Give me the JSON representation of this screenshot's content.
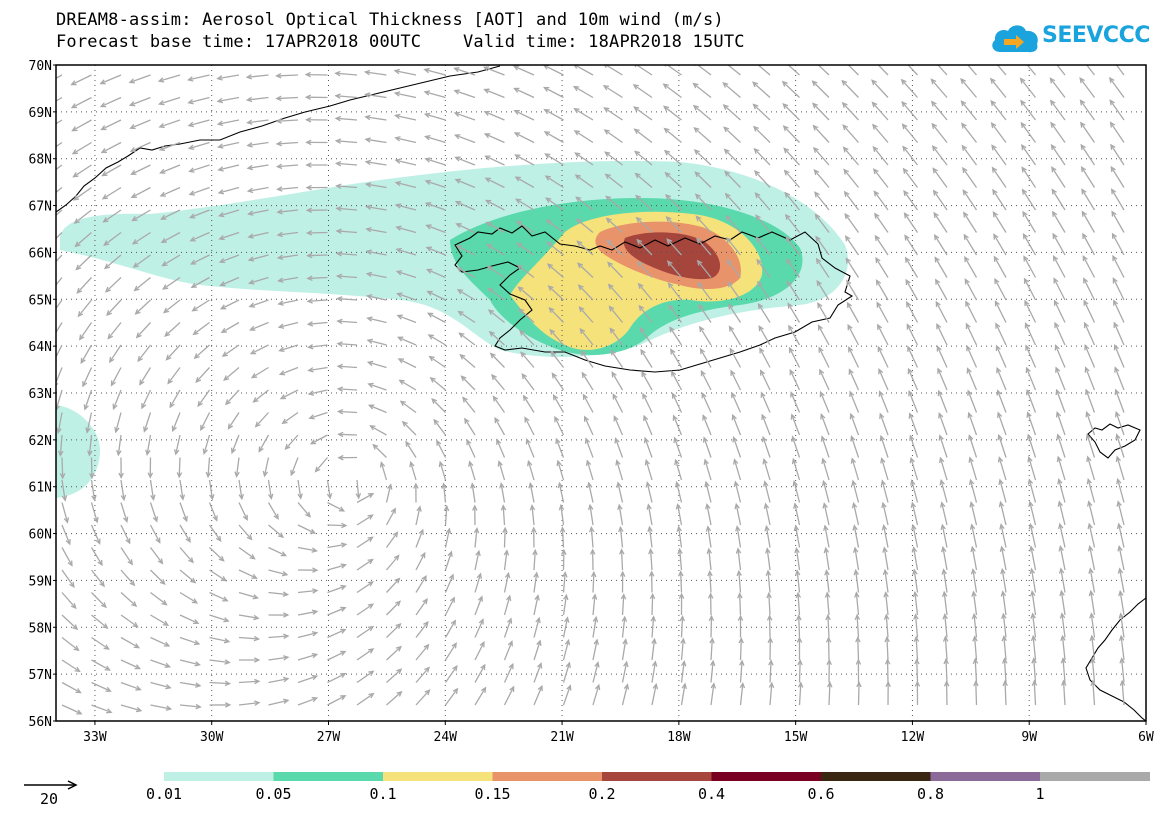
{
  "title": {
    "line1": "DREAM8-assim: Aerosol Optical Thickness [AOT] and 10m wind (m/s)",
    "line2": "Forecast base time: 17APR2018 00UTC    Valid time: 18APR2018 15UTC"
  },
  "logo": {
    "text": "SEEVCCC",
    "icon": "cloud-icon",
    "colors": {
      "cloud": "#1aa3dd",
      "arrow": "#f5a623"
    }
  },
  "map": {
    "lat_range": [
      56,
      70
    ],
    "lon_range": [
      -34,
      -6
    ],
    "lat_labels": [
      "70N",
      "69N",
      "68N",
      "67N",
      "66N",
      "65N",
      "64N",
      "63N",
      "62N",
      "61N",
      "60N",
      "59N",
      "58N",
      "57N",
      "56N"
    ],
    "lon_labels": [
      {
        "lon": -33,
        "label": "33W"
      },
      {
        "lon": -30,
        "label": "30W"
      },
      {
        "lon": -27,
        "label": "27W"
      },
      {
        "lon": -24,
        "label": "24W"
      },
      {
        "lon": -21,
        "label": "21W"
      },
      {
        "lon": -18,
        "label": "18W"
      },
      {
        "lon": -15,
        "label": "15W"
      },
      {
        "lon": -12,
        "label": "12W"
      },
      {
        "lon": -9,
        "label": "9W"
      },
      {
        "lon": -6,
        "label": "6W"
      }
    ],
    "wind_color": "#a9a9a9",
    "coast_color": "#000000"
  },
  "legend": {
    "levels": [
      "0.01",
      "0.05",
      "0.1",
      "0.15",
      "0.2",
      "0.4",
      "0.6",
      "0.8",
      "1"
    ],
    "colors": [
      "#bff0e6",
      "#5ad9ad",
      "#f5e27a",
      "#e9936a",
      "#a6453c",
      "#7a0022",
      "#3a2712",
      "#8b6a9a",
      "#a9a9a9"
    ]
  },
  "wind_reference": {
    "label": "20"
  }
}
